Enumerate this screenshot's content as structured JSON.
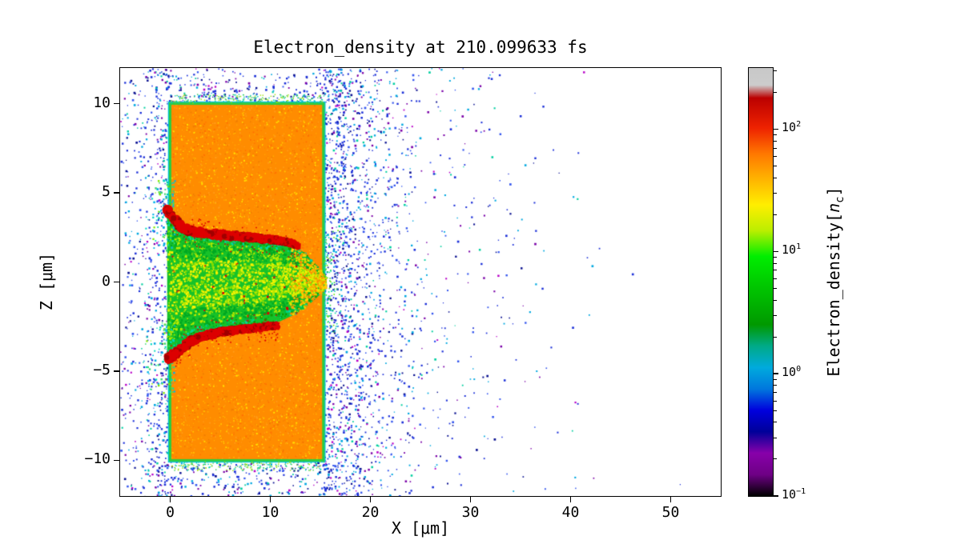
{
  "chart_data": {
    "type": "heatmap",
    "title": "Electron_density at 210.099633 fs",
    "time_fs": 210.099633,
    "xlabel": "X [μm]",
    "ylabel": "Z [μm]",
    "xlim": [
      -5,
      55
    ],
    "ylim": [
      -12,
      12
    ],
    "xticks": [
      0,
      10,
      20,
      30,
      40,
      50
    ],
    "yticks": [
      10,
      5,
      0,
      -5,
      -10
    ],
    "grid": false,
    "colorbar": {
      "label_text": "Electron_density[",
      "label_var": "n",
      "label_sub": "c",
      "label_close": "]",
      "scale": "log",
      "vmin": 0.1,
      "vmax": 316,
      "tick_exponents": [
        2,
        1,
        0,
        -1
      ],
      "colormap": "nipy_spectral",
      "stops": [
        [
          0.0,
          "#000000"
        ],
        [
          0.05,
          "#6e0085"
        ],
        [
          0.1,
          "#8800aa"
        ],
        [
          0.15,
          "#000099"
        ],
        [
          0.2,
          "#0000dd"
        ],
        [
          0.25,
          "#0077dd"
        ],
        [
          0.3,
          "#00aadd"
        ],
        [
          0.35,
          "#00aa88"
        ],
        [
          0.4,
          "#009900"
        ],
        [
          0.5,
          "#00cc00"
        ],
        [
          0.56,
          "#00ee00"
        ],
        [
          0.62,
          "#bbee00"
        ],
        [
          0.68,
          "#ffee00"
        ],
        [
          0.75,
          "#ffaa00"
        ],
        [
          0.8,
          "#ff7700"
        ],
        [
          0.86,
          "#ee2200"
        ],
        [
          0.93,
          "#bb0000"
        ],
        [
          0.96,
          "#cccccc"
        ],
        [
          1.0,
          "#c8c8c8"
        ]
      ]
    },
    "features": {
      "target_slab": {
        "x": [
          0,
          15.3
        ],
        "z": [
          -10,
          10
        ],
        "density_nc": 100,
        "color": "#ff8c00",
        "texture_colors": [
          "#ffa000",
          "#f07d00",
          "#ffc800",
          "#ffe400",
          "#ff6f00",
          "#ff9d1a"
        ],
        "edge_color": "#2ecc40",
        "edge_color2": "#00c0d8"
      },
      "channel": {
        "upper_boundary": [
          [
            -0.3,
            4.35
          ],
          [
            0.5,
            3.6
          ],
          [
            1.5,
            3.05
          ],
          [
            3,
            2.85
          ],
          [
            5,
            2.7
          ],
          [
            7,
            2.55
          ],
          [
            9,
            2.4
          ],
          [
            11,
            2.2
          ],
          [
            12.5,
            2.0
          ],
          [
            13.5,
            1.6
          ],
          [
            14.5,
            1.0
          ],
          [
            15.55,
            0.35
          ]
        ],
        "lower_boundary": [
          [
            -0.3,
            -4.5
          ],
          [
            0.6,
            -3.95
          ],
          [
            2,
            -3.3
          ],
          [
            3.5,
            -3.0
          ],
          [
            5,
            -2.8
          ],
          [
            7,
            -2.6
          ],
          [
            9,
            -2.45
          ],
          [
            11,
            -2.2
          ],
          [
            12.5,
            -1.8
          ],
          [
            13.8,
            -1.3
          ],
          [
            14.8,
            -0.8
          ],
          [
            15.55,
            -0.35
          ]
        ],
        "base_color": "#17c229",
        "base_color2": "#00a822",
        "mid_colors": [
          "#b8ea00",
          "#e8f400",
          "#fff200",
          "#7ddc00"
        ],
        "edge_mix": [
          "#00bb44",
          "#00d8a0",
          "#0f9900"
        ],
        "tip_colors": [
          "#ffd800",
          "#ffa800",
          "#d8ee00",
          "#ff8c00"
        ],
        "mouth_colors": [
          "#00d8c0",
          "#00b4e8",
          "#38d870",
          "#80e800"
        ]
      },
      "filaments": {
        "color": "#dd0000",
        "dark": "#a00000",
        "upper": [
          [
            -0.3,
            4.1
          ],
          [
            0.4,
            3.5
          ],
          [
            1.2,
            3.0
          ],
          [
            2.5,
            2.8
          ],
          [
            4,
            2.7
          ],
          [
            6,
            2.6
          ],
          [
            8,
            2.5
          ],
          [
            10,
            2.4
          ],
          [
            11.5,
            2.25
          ],
          [
            12.8,
            2.05
          ]
        ],
        "lower": [
          [
            -0.3,
            -4.35
          ],
          [
            0.8,
            -3.9
          ],
          [
            2,
            -3.35
          ],
          [
            3.5,
            -3.0
          ],
          [
            5,
            -2.8
          ],
          [
            6.5,
            -2.7
          ],
          [
            8,
            -2.6
          ],
          [
            9.5,
            -2.5
          ],
          [
            10.8,
            -2.45
          ]
        ]
      },
      "speckles": {
        "attempts": 22000,
        "palette": [
          [
            "#1b2fd8",
            0.38
          ],
          [
            "#3355ee",
            0.14
          ],
          [
            "#00a8e0",
            0.16
          ],
          [
            "#0a1190",
            0.12
          ],
          [
            "#7a00a8",
            0.1
          ],
          [
            "#b800c8",
            0.04
          ],
          [
            "#00cfa0",
            0.06
          ]
        ],
        "plume_amp": 1.5,
        "plume_decay": 3.2,
        "left_amp": 0.8,
        "left_decay": 2.2,
        "ambient": 0.13,
        "edge_band_amp": 0.75,
        "max_x": 43
      },
      "fringe_colors": [
        "#30c850",
        "#00c8b0",
        "#a0e000"
      ],
      "tip_bulge_colors": [
        "#20c840",
        "#00d8a0",
        "#60e000"
      ]
    }
  }
}
